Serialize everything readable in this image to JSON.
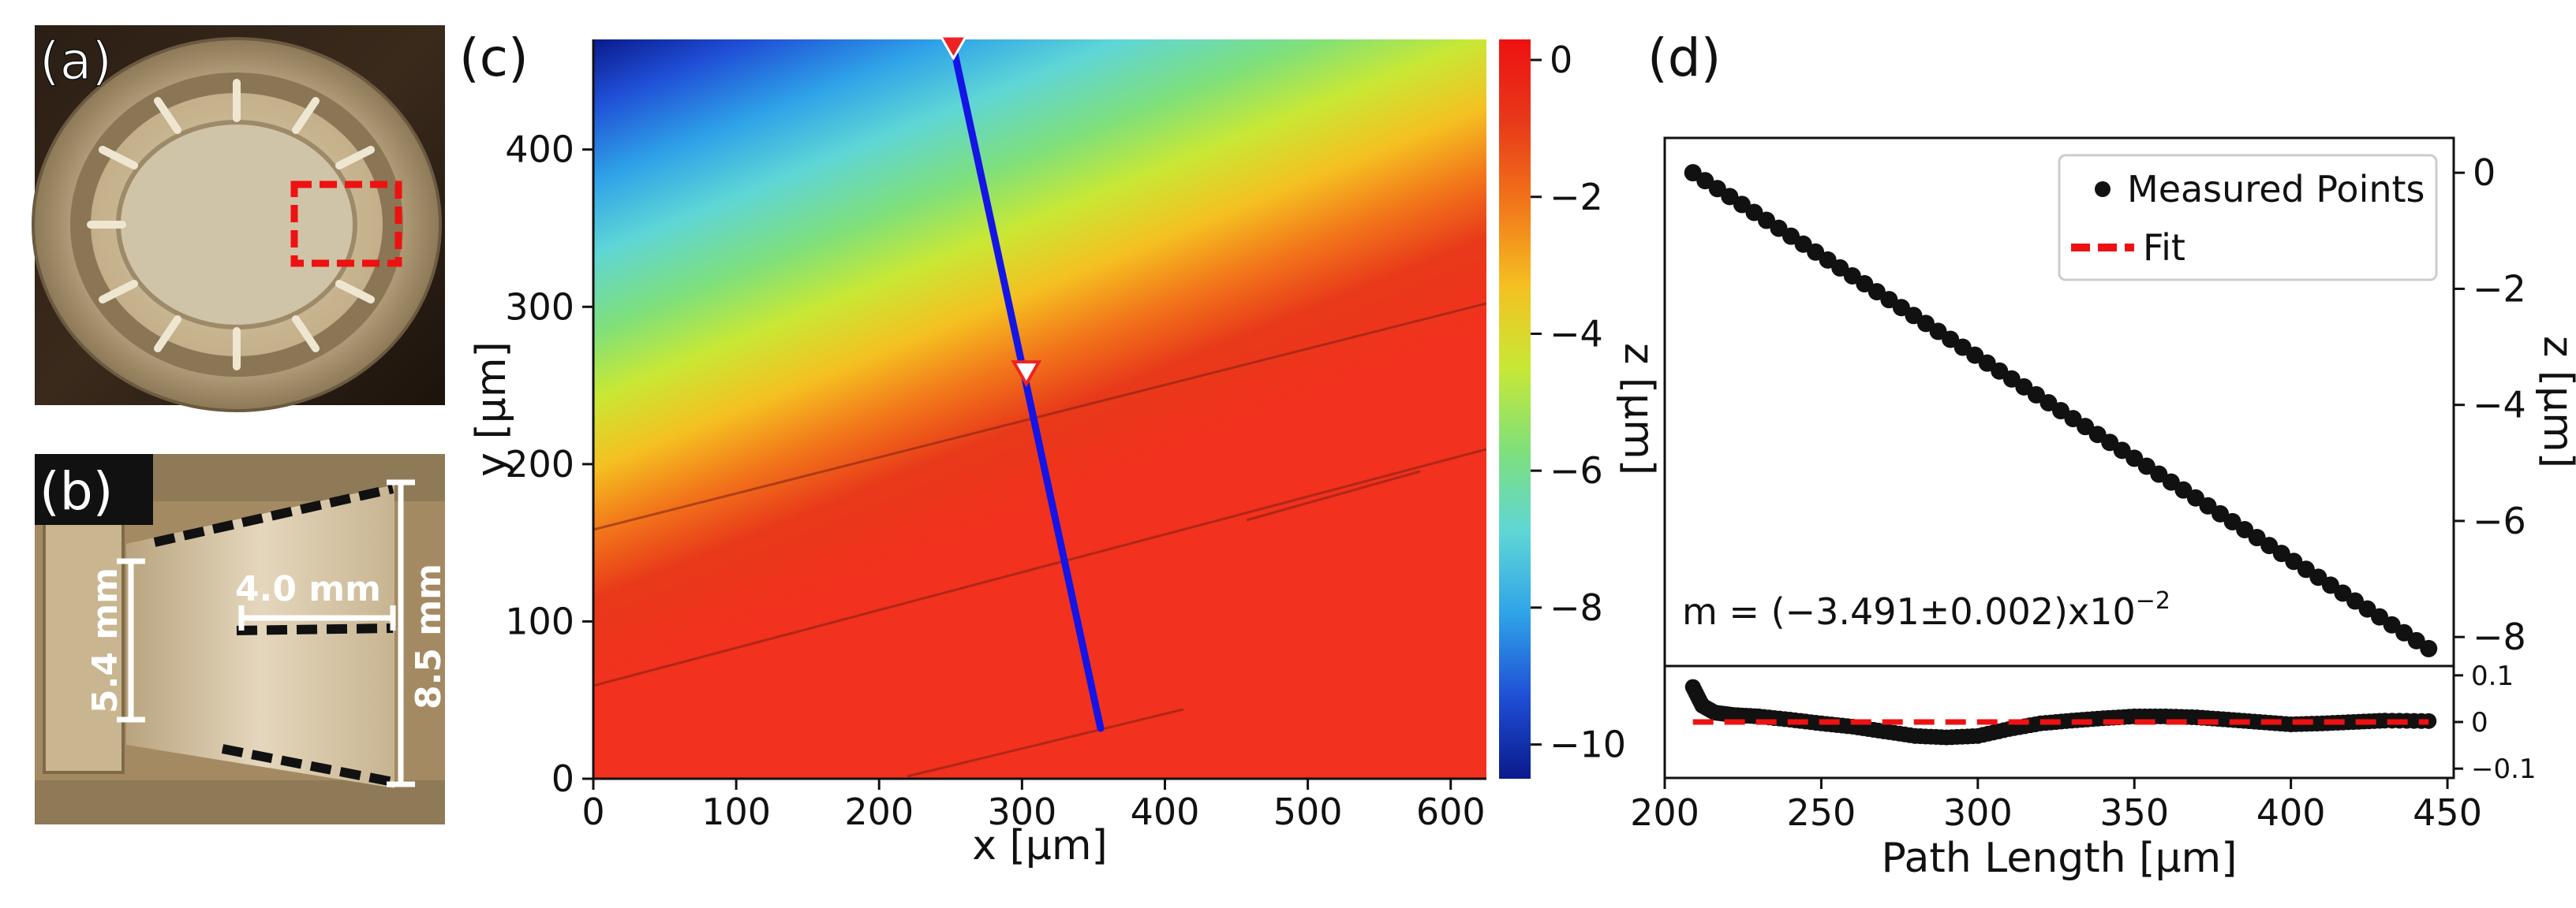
{
  "panels": {
    "a": {
      "label": "(a)"
    },
    "b": {
      "label": "(b)",
      "annotations": [
        "5.4 mm",
        "4.0 mm",
        "8.5 mm"
      ]
    },
    "c": {
      "label": "(c)"
    },
    "d": {
      "label": "(d)"
    }
  },
  "colors": {
    "heat_stops": [
      "#0a1a8c",
      "#1f4fd6",
      "#2fa3e8",
      "#5fd6d6",
      "#7fe07a",
      "#c8e835",
      "#f5c021",
      "#f2761a",
      "#e8391a",
      "#f2311e"
    ],
    "path": "#1414e6",
    "fit": "#ee1111",
    "points": "#111111",
    "marker_fill": "#ee2222"
  },
  "chart_data": [
    {
      "type": "heatmap",
      "panel": "c",
      "xlabel": "x [μm]",
      "ylabel": "y [μm]",
      "xlim": [
        0,
        625
      ],
      "ylim": [
        0,
        470
      ],
      "xticks": [
        0,
        100,
        200,
        300,
        400,
        500,
        600
      ],
      "yticks": [
        0,
        100,
        200,
        300,
        400
      ],
      "colorbar": {
        "label": "z [μm]",
        "range": [
          -10.5,
          0.3
        ],
        "ticks": [
          0,
          -2,
          -4,
          -6,
          -8,
          -10
        ],
        "tick_labels": [
          "0",
          "−2",
          "−4",
          "−6",
          "−8",
          "−10"
        ]
      },
      "path": {
        "start": [
          252,
          465
        ],
        "end": [
          355,
          32
        ],
        "marker_filled": [
          252,
          465
        ],
        "marker_open": [
          303,
          258
        ]
      }
    },
    {
      "type": "scatter",
      "panel": "d",
      "xlabel": "Path Length [μm]",
      "ylabel": "z [μm]",
      "xlim": [
        200,
        452
      ],
      "xticks": [
        200,
        250,
        300,
        350,
        400,
        450
      ],
      "top": {
        "ylim": [
          -8.5,
          0.6
        ],
        "yticks": [
          0,
          -2,
          -4,
          -6,
          -8
        ],
        "ytick_labels": [
          "0",
          "−2",
          "−4",
          "−6",
          "−8"
        ],
        "series": [
          {
            "name": "Measured Points",
            "x_range": [
              209,
              444
            ],
            "y_range": [
              0,
              -8.2
            ]
          },
          {
            "name": "Fit",
            "x_range": [
              209,
              444
            ],
            "y_range": [
              0,
              -8.2
            ]
          }
        ],
        "annotation": "m = (−3.491±0.002)x10",
        "annotation_exp": "−2"
      },
      "bottom": {
        "ylim": [
          -0.12,
          0.12
        ],
        "yticks": [
          0.1,
          0,
          -0.1
        ],
        "ytick_labels": [
          "0.1",
          "0",
          "−0.1"
        ],
        "residuals": {
          "x": [
            209,
            212,
            216,
            222,
            230,
            240,
            250,
            260,
            270,
            280,
            290,
            300,
            310,
            320,
            330,
            340,
            350,
            360,
            370,
            380,
            390,
            400,
            410,
            420,
            430,
            444
          ],
          "y": [
            0.075,
            0.035,
            0.02,
            0.015,
            0.012,
            0.005,
            -0.003,
            -0.01,
            -0.02,
            -0.03,
            -0.033,
            -0.03,
            -0.015,
            -0.003,
            0.003,
            0.008,
            0.012,
            0.012,
            0.01,
            0.005,
            0.0,
            -0.005,
            -0.003,
            0.0,
            0.003,
            0.002
          ]
        },
        "fit_y": 0
      }
    }
  ]
}
